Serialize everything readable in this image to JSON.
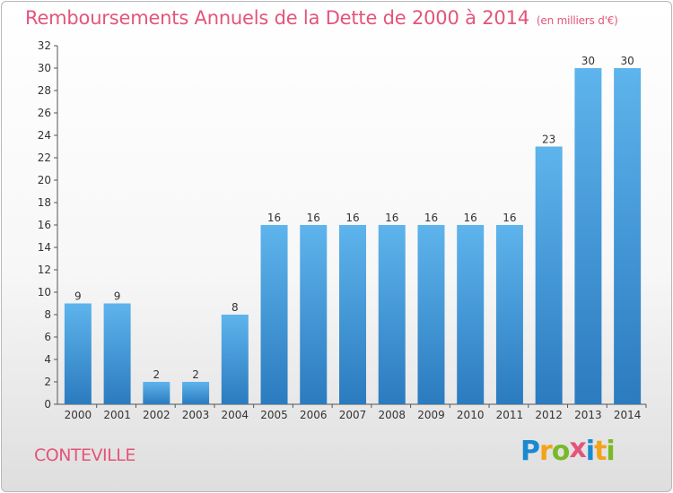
{
  "chart_data": {
    "type": "bar",
    "title": "Remboursements Annuels de la Dette de 2000 à 2014",
    "unit_note": "(en milliers d'€)",
    "categories": [
      "2000",
      "2001",
      "2002",
      "2003",
      "2004",
      "2005",
      "2006",
      "2007",
      "2008",
      "2009",
      "2010",
      "2011",
      "2012",
      "2013",
      "2014"
    ],
    "values": [
      9,
      9,
      2,
      2,
      8,
      16,
      16,
      16,
      16,
      16,
      16,
      16,
      23,
      30,
      30
    ],
    "ylim": [
      0,
      32
    ],
    "yticks": [
      0,
      2,
      4,
      6,
      8,
      10,
      12,
      14,
      16,
      18,
      20,
      22,
      24,
      26,
      28,
      30,
      32
    ],
    "grid": false,
    "bar_color": "#4aa3e2",
    "bar_color_dark": "#2b7bbf"
  },
  "footer": {
    "commune": "CONTEVILLE",
    "logo_letters": [
      "P",
      "r",
      "o",
      "x",
      "i",
      "t",
      "i"
    ],
    "logo_colors": [
      "#1a8ad0",
      "#f4a21a",
      "#7ab929",
      "#e4547a",
      "#1a8ad0",
      "#f4a21a",
      "#7ab929"
    ]
  }
}
